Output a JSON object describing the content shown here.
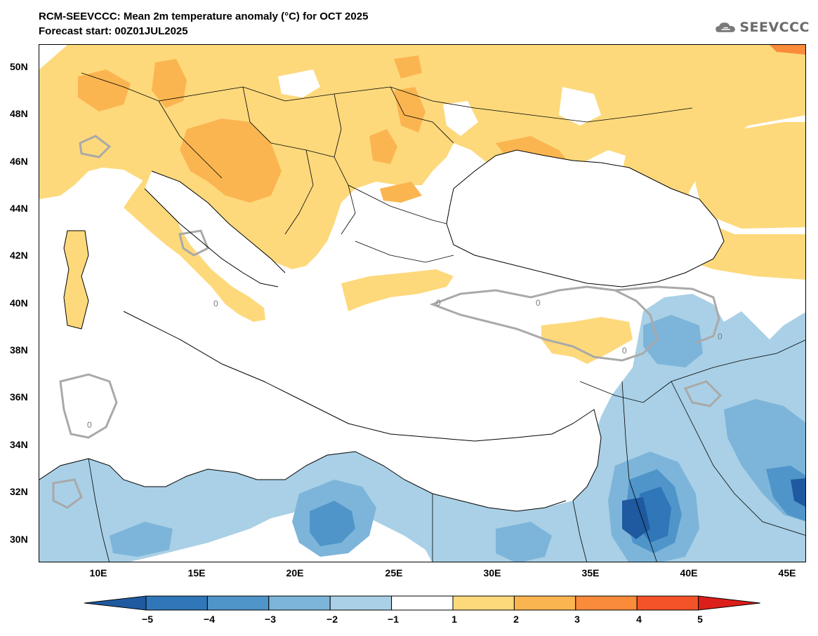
{
  "header": {
    "title": "RCM-SEEVCCC: Mean 2m temperature anomaly (°C) for OCT 2025",
    "subtitle": "Forecast start: 00Z01JUL2025"
  },
  "logo": {
    "text": "SEEVCCC",
    "icon": "cloud-icon"
  },
  "map": {
    "lat_labels": [
      "50N",
      "48N",
      "46N",
      "44N",
      "42N",
      "40N",
      "38N",
      "36N",
      "34N",
      "32N",
      "30N"
    ],
    "lon_labels": [
      "10E",
      "15E",
      "20E",
      "25E",
      "30E",
      "35E",
      "40E",
      "45E"
    ],
    "contour_label": "0"
  },
  "colorbar": {
    "labels": [
      "−5",
      "−4",
      "−3",
      "−2",
      "−1",
      "1",
      "2",
      "3",
      "4",
      "5"
    ],
    "colors": [
      "#1f5aa0",
      "#2f77b8",
      "#4f95ca",
      "#7db5da",
      "#a9d0e6",
      "#ffffff",
      "#fdd97c",
      "#fbb550",
      "#f98b3a",
      "#f45228",
      "#dc1f1a"
    ]
  }
}
